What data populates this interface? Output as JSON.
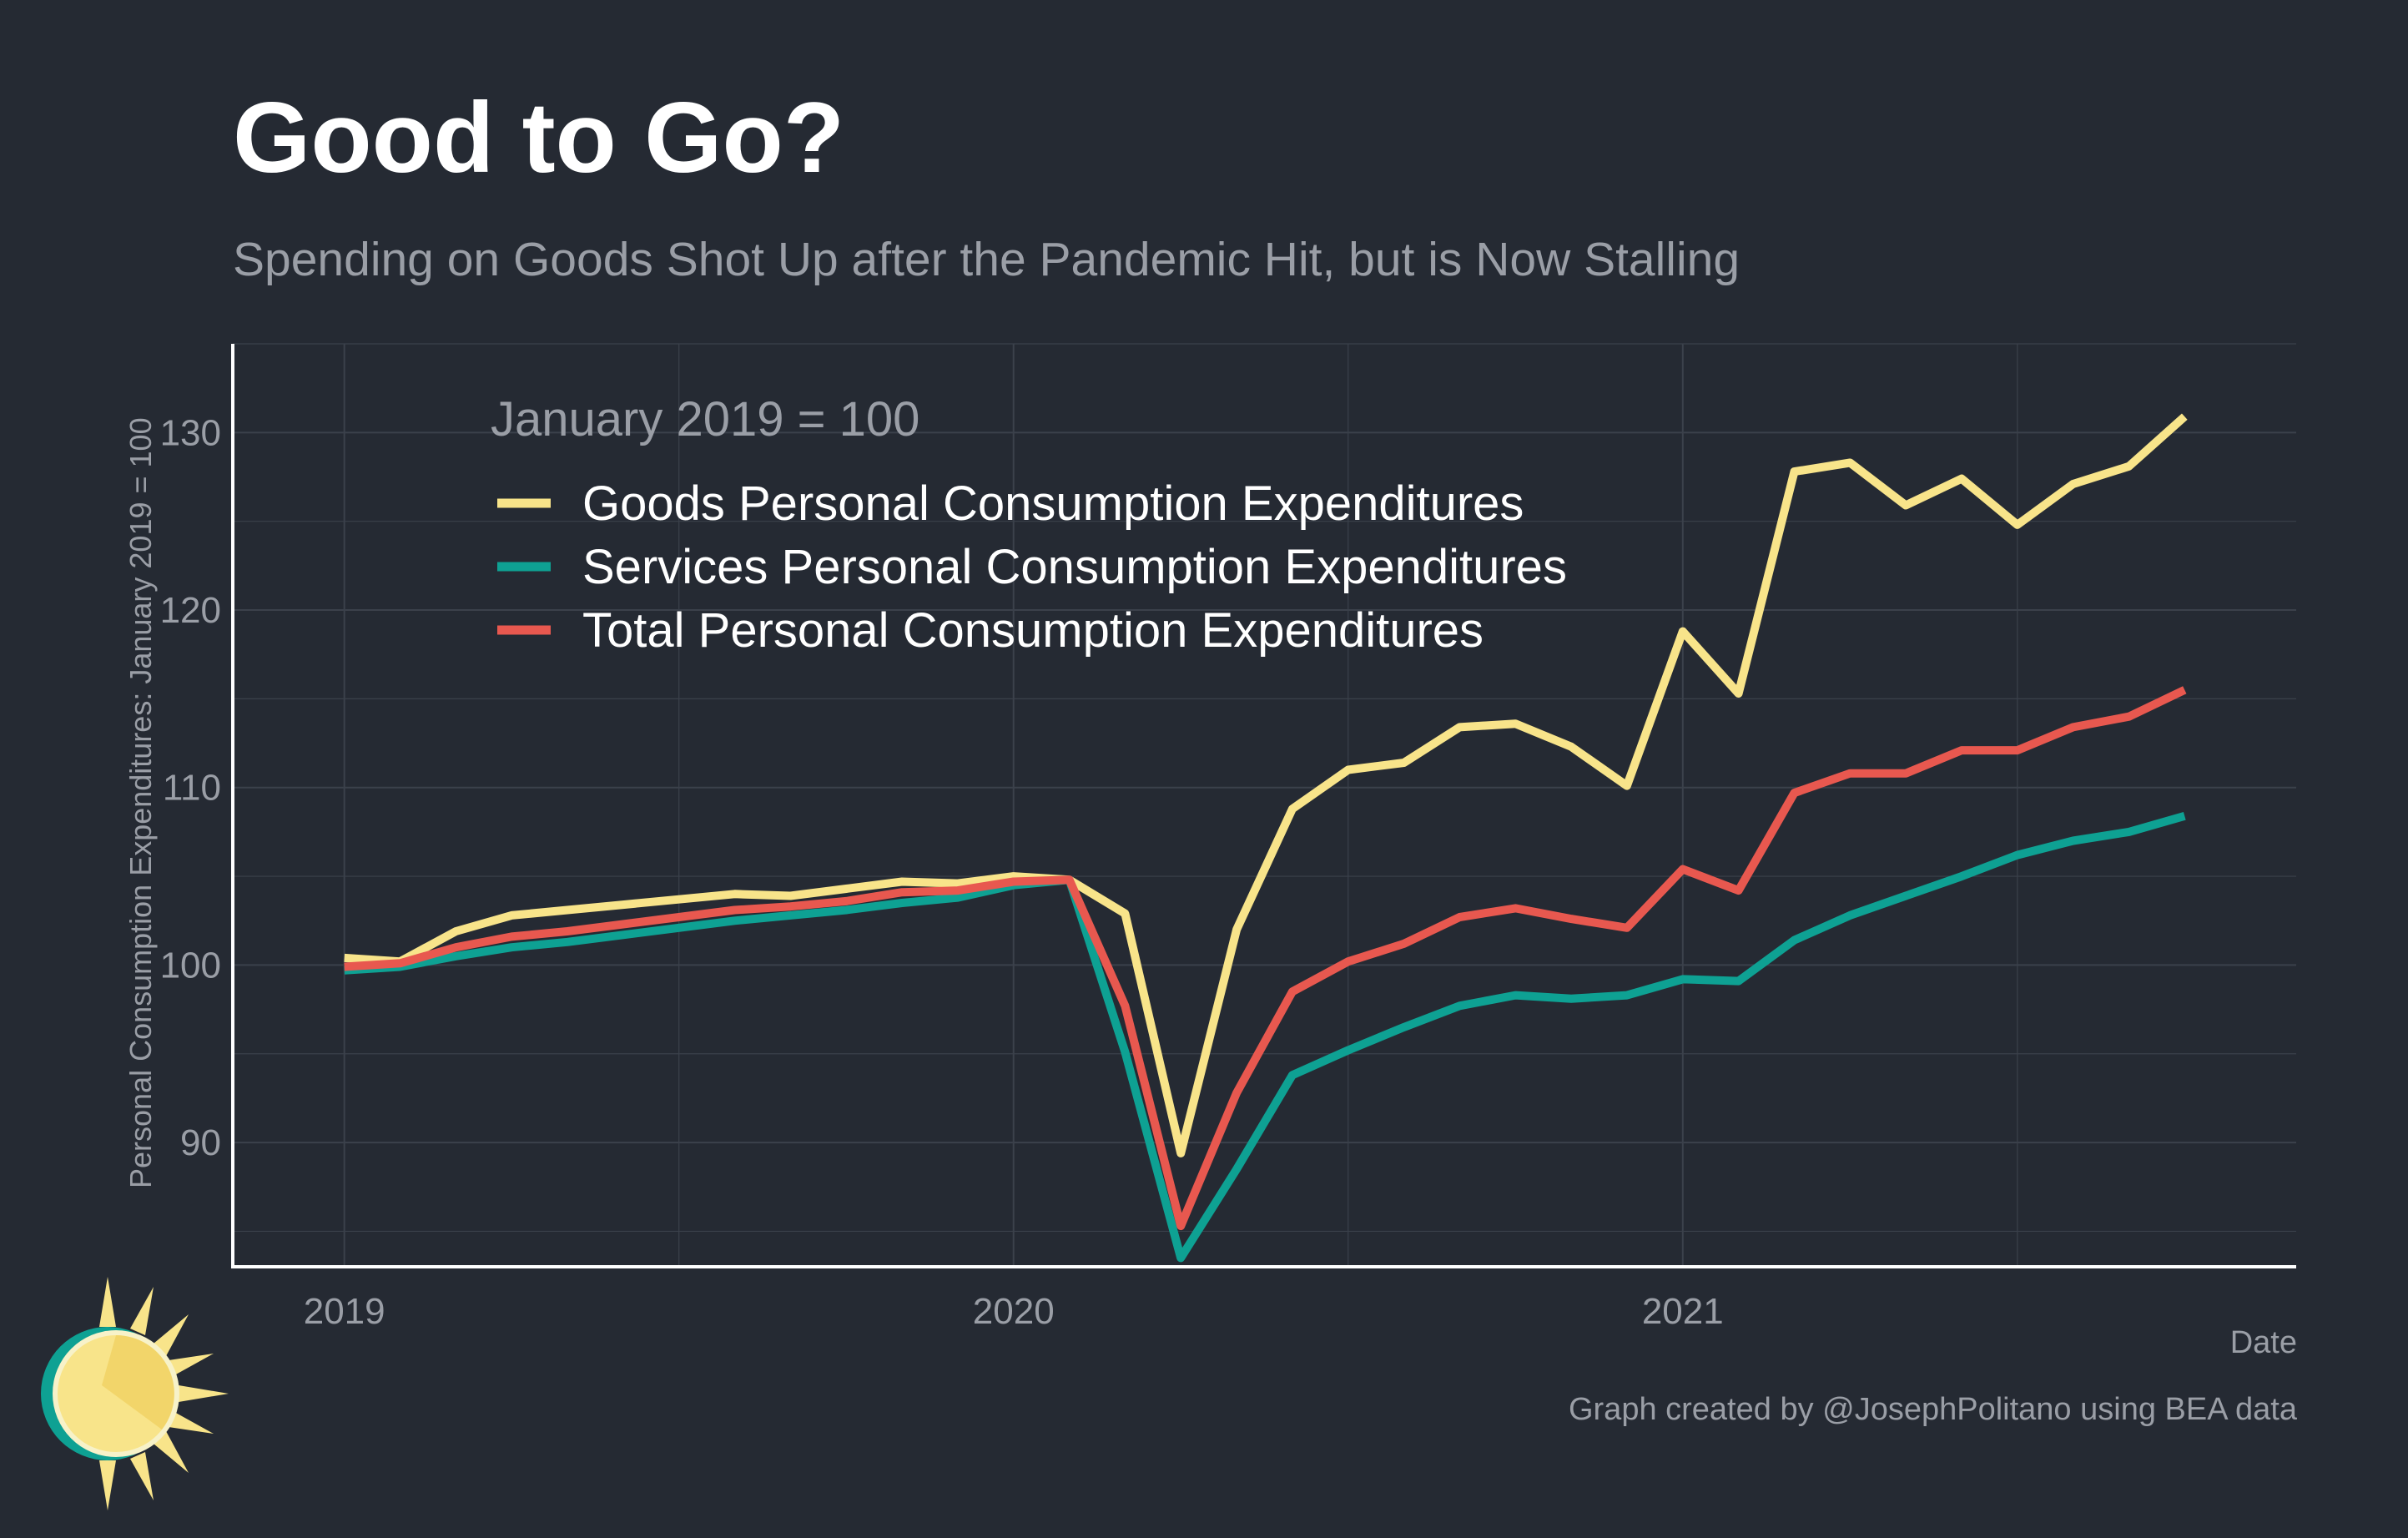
{
  "title": "Good to Go?",
  "subtitle": "Spending on Goods Shot Up after the Pandemic Hit, but is Now Stalling",
  "caption": "Graph created by @JosephPolitano using BEA data",
  "colors": {
    "background": "#252a33",
    "grid": "#3b414b",
    "axis": "#ffffff",
    "muted_text": "#9a9ea6",
    "goods": "#f8e48a",
    "services": "#0ea193",
    "total": "#e8584f"
  },
  "chart_data": {
    "type": "line",
    "xlabel": "Date",
    "ylabel": "Personal Consumption Expenditures: January 2019 = 100",
    "legend_title": "January 2019 = 100",
    "legend_position": "top-left",
    "grid": true,
    "xlim": [
      "2018-11",
      "2021-12"
    ],
    "ylim": [
      83,
      135
    ],
    "x_ticks": [
      "2019-01",
      "2020-01",
      "2021-01"
    ],
    "x_tick_labels": [
      "2019",
      "2020",
      "2021"
    ],
    "y_ticks": [
      90,
      100,
      110,
      120,
      130
    ],
    "x": [
      "2019-01",
      "2019-02",
      "2019-03",
      "2019-04",
      "2019-05",
      "2019-06",
      "2019-07",
      "2019-08",
      "2019-09",
      "2019-10",
      "2019-11",
      "2019-12",
      "2020-01",
      "2020-02",
      "2020-03",
      "2020-04",
      "2020-05",
      "2020-06",
      "2020-07",
      "2020-08",
      "2020-09",
      "2020-10",
      "2020-11",
      "2020-12",
      "2021-01",
      "2021-02",
      "2021-03",
      "2021-04",
      "2021-05",
      "2021-06",
      "2021-07",
      "2021-08",
      "2021-09",
      "2021-10"
    ],
    "series": [
      {
        "name": "Goods Personal Consumption Expenditures",
        "color": "#f8e48a",
        "values": [
          100.4,
          100.2,
          101.9,
          102.8,
          103.1,
          103.4,
          103.7,
          104.0,
          103.9,
          104.3,
          104.7,
          104.6,
          105.0,
          104.8,
          102.9,
          89.4,
          102.0,
          108.8,
          111.0,
          111.4,
          113.4,
          113.6,
          112.3,
          110.1,
          118.8,
          115.3,
          127.8,
          128.3,
          125.9,
          127.4,
          124.8,
          127.1,
          128.1,
          130.9
        ]
      },
      {
        "name": "Services Personal Consumption Expenditures",
        "color": "#0ea193",
        "values": [
          99.7,
          99.9,
          100.5,
          101.0,
          101.3,
          101.7,
          102.1,
          102.5,
          102.8,
          103.1,
          103.5,
          103.8,
          104.5,
          104.8,
          95.1,
          83.5,
          88.5,
          93.8,
          95.2,
          96.5,
          97.7,
          98.3,
          98.1,
          98.3,
          99.2,
          99.1,
          101.4,
          102.8,
          103.9,
          105.0,
          106.2,
          107.0,
          107.5,
          108.4
        ]
      },
      {
        "name": "Total Personal Consumption Expenditures",
        "color": "#e8584f",
        "values": [
          99.9,
          100.1,
          101.0,
          101.6,
          101.9,
          102.3,
          102.7,
          103.1,
          103.3,
          103.6,
          104.1,
          104.2,
          104.7,
          104.8,
          97.7,
          85.3,
          92.8,
          98.5,
          100.2,
          101.2,
          102.7,
          103.2,
          102.6,
          102.1,
          105.4,
          104.2,
          109.7,
          110.8,
          110.8,
          112.1,
          112.1,
          113.4,
          114.0,
          115.5
        ]
      }
    ]
  },
  "logo": {
    "icon": "sun-logo-icon"
  }
}
